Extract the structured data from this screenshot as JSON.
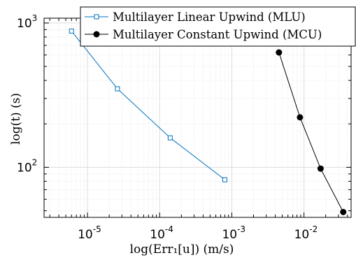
{
  "chart_data": {
    "type": "line",
    "xlabel": "log(Err₁[u]) (m/s)",
    "ylabel": "log(t) (s)",
    "xscale": "log",
    "yscale": "log",
    "xlim": [
      2.5e-06,
      0.045
    ],
    "ylim": [
      45,
      1080
    ],
    "grid": true,
    "legend_position": "top-right",
    "x_ticks": [
      {
        "value": 1e-05,
        "base": "10",
        "exp": "-5"
      },
      {
        "value": 0.0001,
        "base": "10",
        "exp": "-4"
      },
      {
        "value": 0.001,
        "base": "10",
        "exp": "-3"
      },
      {
        "value": 0.01,
        "base": "10",
        "exp": "-2"
      }
    ],
    "y_ticks": [
      {
        "value": 100,
        "base": "10",
        "exp": "2"
      },
      {
        "value": 1000,
        "base": "10",
        "exp": "3"
      }
    ],
    "series": [
      {
        "name": "Multilayer Linear Upwind (MLU)",
        "color": "#0072bd",
        "marker": "square-open",
        "x": [
          6e-06,
          2.6e-05,
          0.00014,
          0.0008
        ],
        "y": [
          880,
          350,
          160,
          82
        ]
      },
      {
        "name": "Multilayer Constant Upwind (MCU)",
        "color": "#000000",
        "marker": "circle-filled",
        "x": [
          0.0045,
          0.0088,
          0.017,
          0.035
        ],
        "y": [
          625,
          222,
          98,
          49
        ]
      }
    ]
  }
}
